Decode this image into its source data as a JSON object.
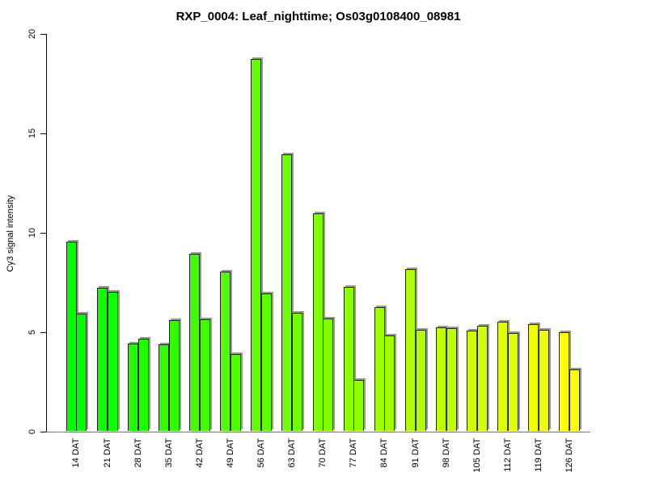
{
  "chart_data": {
    "type": "bar",
    "title": "RXP_0004: Leaf_nighttime; Os03g0108400_08981",
    "xlabel": "",
    "ylabel": "Cy3 signal intensity",
    "ylim": [
      0,
      20
    ],
    "yticks": [
      0,
      5,
      10,
      15,
      20
    ],
    "grid": false,
    "legend": null,
    "categories": [
      "14 DAT",
      "21 DAT",
      "28 DAT",
      "35 DAT",
      "42 DAT",
      "49 DAT",
      "56 DAT",
      "63 DAT",
      "70 DAT",
      "77 DAT",
      "84 DAT",
      "91 DAT",
      "98 DAT",
      "105 DAT",
      "112 DAT",
      "119 DAT",
      "126 DAT"
    ],
    "series": [
      {
        "values": [
          9.5,
          7.2,
          4.4,
          4.35,
          8.9,
          8.0,
          18.7,
          13.9,
          10.95,
          7.25,
          6.2,
          8.15,
          5.2,
          5.05,
          5.5,
          5.35,
          4.95
        ]
      },
      {
        "values": [
          5.9,
          7.0,
          4.65,
          5.55,
          5.6,
          3.85,
          6.9,
          5.95,
          5.65,
          2.55,
          4.8,
          5.1,
          5.15,
          5.3,
          4.9,
          5.1,
          3.1
        ]
      }
    ],
    "bar_colors": [
      "#00FF00",
      "#10FF00",
      "#20FF00",
      "#30FF00",
      "#40FF00",
      "#50FF00",
      "#60FF00",
      "#70FF00",
      "#80FF00",
      "#8FFF00",
      "#9FFF00",
      "#AFFF00",
      "#BFFF00",
      "#CFFF00",
      "#DFFF00",
      "#EFFF00",
      "#FFFF00"
    ],
    "bar_border_color": "#222222",
    "bar_shadow_color": "#999990",
    "axis_color": "#000000",
    "background_color": "#FFFFFF"
  }
}
